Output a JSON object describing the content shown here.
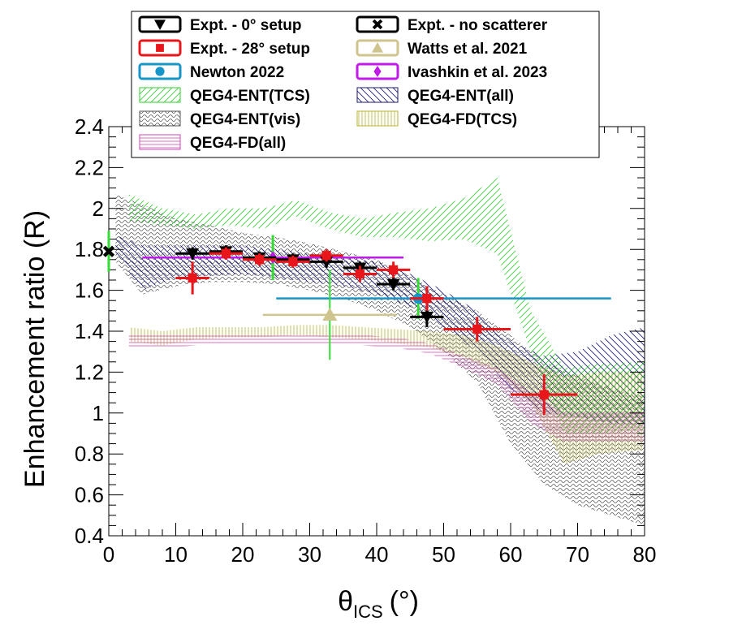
{
  "chart_data": {
    "type": "scatter",
    "xlabel_main": "θ",
    "xlabel_sub": "ICS",
    "xlabel_unit": "(°)",
    "ylabel": "Enhancement ratio (R)",
    "xlim": [
      0,
      80
    ],
    "ylim": [
      0.4,
      2.4
    ],
    "x_ticks": [
      0,
      10,
      20,
      30,
      40,
      50,
      60,
      70,
      80
    ],
    "y_ticks": [
      0.4,
      0.6,
      0.8,
      1,
      1.2,
      1.4,
      1.6,
      1.8,
      2,
      2.2,
      2.4
    ],
    "y_tick_labels": [
      "0.4",
      "0.6",
      "0.8",
      "1",
      "1.2",
      "1.4",
      "1.6",
      "1.8",
      "2",
      "2.2",
      "2.4"
    ],
    "colors": {
      "expt0": "#000000",
      "expt28": "#e8161a",
      "newton": "#1696c8",
      "watts": "#cfc48e",
      "ivashkin": "#c01ae8",
      "ent_tcs": "#33cc33",
      "ent_all": "#1a1a6e",
      "ent_vis": "#555555",
      "fd_tcs": "#b8b230",
      "fd_all": "#cc44b4"
    },
    "legend": [
      {
        "key": "expt0",
        "label": "Expt. - 0° setup",
        "style": "marker"
      },
      {
        "key": "nosc",
        "label": "Expt. - no scatterer",
        "style": "marker"
      },
      {
        "key": "expt28",
        "label": "Expt. - 28° setup",
        "style": "marker"
      },
      {
        "key": "watts",
        "label": "Watts et al. 2021",
        "style": "marker"
      },
      {
        "key": "newton",
        "label": "Newton 2022",
        "style": "marker"
      },
      {
        "key": "ivashkin",
        "label": "Ivashkin et al. 2023",
        "style": "marker"
      },
      {
        "key": "ent_tcs",
        "label": "QEG4-ENT(TCS)",
        "style": "band"
      },
      {
        "key": "ent_all",
        "label": "QEG4-ENT(all)",
        "style": "band"
      },
      {
        "key": "ent_vis",
        "label": "QEG4-ENT(vis)",
        "style": "band"
      },
      {
        "key": "fd_tcs",
        "label": "QEG4-FD(TCS)",
        "style": "band"
      },
      {
        "key": "fd_all",
        "label": "QEG4-FD(all)",
        "style": "band"
      }
    ],
    "bands": [
      {
        "name": "QEG4-ENT(vis)",
        "key": "ent_vis",
        "pattern": "wave",
        "x": [
          1,
          5,
          10,
          15,
          20,
          25,
          30,
          35,
          40,
          45,
          50,
          55,
          60,
          65,
          70,
          75,
          80
        ],
        "lo": [
          1.74,
          1.58,
          1.62,
          1.64,
          1.64,
          1.63,
          1.6,
          1.56,
          1.5,
          1.42,
          1.3,
          1.15,
          0.85,
          0.65,
          0.55,
          0.5,
          0.45
        ],
        "hi": [
          2.07,
          2.02,
          1.95,
          1.92,
          1.88,
          1.86,
          1.83,
          1.79,
          1.75,
          1.67,
          1.58,
          1.5,
          1.38,
          1.25,
          1.18,
          1.12,
          1.08
        ]
      },
      {
        "name": "QEG4-ENT(all)",
        "key": "ent_all",
        "pattern": "back",
        "x": [
          1,
          5,
          10,
          15,
          20,
          25,
          30,
          35,
          40,
          45,
          50,
          55,
          60,
          65,
          70,
          75,
          80
        ],
        "lo": [
          1.78,
          1.6,
          1.66,
          1.67,
          1.68,
          1.66,
          1.64,
          1.62,
          1.58,
          1.52,
          1.42,
          1.3,
          1.12,
          1.0,
          0.98,
          0.95,
          0.94
        ],
        "hi": [
          1.87,
          1.82,
          1.82,
          1.82,
          1.82,
          1.8,
          1.78,
          1.76,
          1.74,
          1.68,
          1.6,
          1.5,
          1.35,
          1.28,
          1.3,
          1.38,
          1.42
        ]
      },
      {
        "name": "QEG4-ENT(TCS)",
        "key": "ent_tcs",
        "pattern": "fwd",
        "x": [
          3,
          8,
          13,
          18,
          23,
          28,
          33,
          38,
          43,
          48,
          53,
          58,
          63,
          68,
          73,
          80
        ],
        "lo": [
          1.94,
          1.92,
          1.9,
          1.92,
          1.9,
          1.96,
          1.9,
          1.86,
          1.86,
          1.84,
          1.85,
          1.78,
          1.3,
          0.9,
          0.9,
          0.92
        ],
        "hi": [
          2.07,
          2.0,
          1.97,
          2.0,
          2.0,
          2.04,
          1.98,
          1.95,
          1.98,
          2.0,
          2.05,
          2.15,
          1.5,
          1.22,
          1.24,
          1.25
        ]
      },
      {
        "name": "QEG4-FD(TCS)",
        "key": "fd_tcs",
        "pattern": "vert",
        "x": [
          3,
          8,
          13,
          18,
          23,
          28,
          33,
          38,
          43,
          48,
          53,
          58,
          63,
          68,
          73,
          80
        ],
        "lo": [
          1.35,
          1.33,
          1.36,
          1.37,
          1.37,
          1.38,
          1.37,
          1.36,
          1.34,
          1.32,
          1.27,
          1.2,
          1.05,
          0.75,
          0.8,
          0.82
        ],
        "hi": [
          1.42,
          1.4,
          1.42,
          1.42,
          1.42,
          1.43,
          1.43,
          1.42,
          1.41,
          1.4,
          1.38,
          1.33,
          1.25,
          1.18,
          1.2,
          1.2
        ]
      },
      {
        "name": "QEG4-FD(all)",
        "key": "fd_all",
        "pattern": "horiz",
        "x": [
          3,
          8,
          13,
          18,
          23,
          28,
          33,
          38,
          43,
          48,
          53,
          58,
          63,
          68,
          73,
          80
        ],
        "lo": [
          1.32,
          1.32,
          1.33,
          1.34,
          1.34,
          1.34,
          1.34,
          1.33,
          1.32,
          1.29,
          1.22,
          1.14,
          0.95,
          0.86,
          0.86,
          0.86
        ],
        "hi": [
          1.38,
          1.38,
          1.38,
          1.39,
          1.39,
          1.39,
          1.39,
          1.38,
          1.37,
          1.34,
          1.28,
          1.22,
          1.1,
          1.0,
          1.0,
          1.0
        ]
      }
    ],
    "series": [
      {
        "name": "Newton 2022",
        "key": "newton",
        "marker": "circle",
        "points": [
          {
            "x": 46.2,
            "y": 1.56,
            "xlo": 25,
            "xhi": 75,
            "ylo": 1.46,
            "yhi": 1.66
          }
        ]
      },
      {
        "name": "Watts et al. 2021",
        "key": "watts",
        "marker": "triangle-up",
        "points": [
          {
            "x": 33,
            "y": 1.48,
            "xlo": 23,
            "xhi": 43,
            "ylo": 1.26,
            "yhi": 1.7
          }
        ]
      },
      {
        "name": "Ivashkin et al. 2023",
        "key": "ivashkin",
        "marker": "diamond",
        "points": [
          {
            "x": 24.5,
            "y": 1.76,
            "xlo": 5,
            "xhi": 44,
            "ylo": 1.65,
            "yhi": 1.87
          }
        ]
      },
      {
        "name": "Expt. - 0° setup",
        "key": "expt0",
        "marker": "triangle-down",
        "points": [
          {
            "x": 12.5,
            "y": 1.78,
            "xlo": 10,
            "xhi": 15,
            "ylo": 1.75,
            "yhi": 1.81
          },
          {
            "x": 17.5,
            "y": 1.79,
            "xlo": 15,
            "xhi": 20,
            "ylo": 1.76,
            "yhi": 1.82
          },
          {
            "x": 22.5,
            "y": 1.76,
            "xlo": 20,
            "xhi": 25,
            "ylo": 1.73,
            "yhi": 1.79
          },
          {
            "x": 27.5,
            "y": 1.75,
            "xlo": 25,
            "xhi": 30,
            "ylo": 1.72,
            "yhi": 1.78
          },
          {
            "x": 32.5,
            "y": 1.74,
            "xlo": 30,
            "xhi": 35,
            "ylo": 1.71,
            "yhi": 1.77
          },
          {
            "x": 37.5,
            "y": 1.71,
            "xlo": 35,
            "xhi": 40,
            "ylo": 1.68,
            "yhi": 1.74
          },
          {
            "x": 42.5,
            "y": 1.63,
            "xlo": 40,
            "xhi": 45,
            "ylo": 1.6,
            "yhi": 1.66
          },
          {
            "x": 47.5,
            "y": 1.47,
            "xlo": 45,
            "xhi": 50,
            "ylo": 1.42,
            "yhi": 1.52
          }
        ]
      },
      {
        "name": "Expt. - 28° setup",
        "key": "expt28",
        "marker": "square",
        "points": [
          {
            "x": 12.5,
            "y": 1.66,
            "xlo": 10,
            "xhi": 15,
            "ylo": 1.58,
            "yhi": 1.74
          },
          {
            "x": 17.5,
            "y": 1.78,
            "xlo": 15,
            "xhi": 20,
            "ylo": 1.75,
            "yhi": 1.81
          },
          {
            "x": 22.5,
            "y": 1.75,
            "xlo": 20,
            "xhi": 25,
            "ylo": 1.72,
            "yhi": 1.78
          },
          {
            "x": 27.5,
            "y": 1.74,
            "xlo": 25,
            "xhi": 30,
            "ylo": 1.71,
            "yhi": 1.77
          },
          {
            "x": 32.5,
            "y": 1.77,
            "xlo": 30,
            "xhi": 35,
            "ylo": 1.74,
            "yhi": 1.8
          },
          {
            "x": 37.5,
            "y": 1.68,
            "xlo": 35,
            "xhi": 40,
            "ylo": 1.64,
            "yhi": 1.72
          },
          {
            "x": 42.5,
            "y": 1.7,
            "xlo": 40,
            "xhi": 45,
            "ylo": 1.66,
            "yhi": 1.74
          },
          {
            "x": 47.5,
            "y": 1.56,
            "xlo": 45,
            "xhi": 50,
            "ylo": 1.5,
            "yhi": 1.62
          },
          {
            "x": 55,
            "y": 1.41,
            "xlo": 50,
            "xhi": 60,
            "ylo": 1.35,
            "yhi": 1.47
          },
          {
            "x": 65,
            "y": 1.09,
            "xlo": 60,
            "xhi": 70,
            "ylo": 0.99,
            "yhi": 1.19
          }
        ]
      },
      {
        "name": "Expt. - no scatterer",
        "key": "nosc",
        "marker": "cross",
        "points": [
          {
            "x": 0,
            "y": 1.79,
            "xlo": 0,
            "xhi": 0,
            "ylo": 1.69,
            "yhi": 1.89
          }
        ]
      }
    ]
  }
}
